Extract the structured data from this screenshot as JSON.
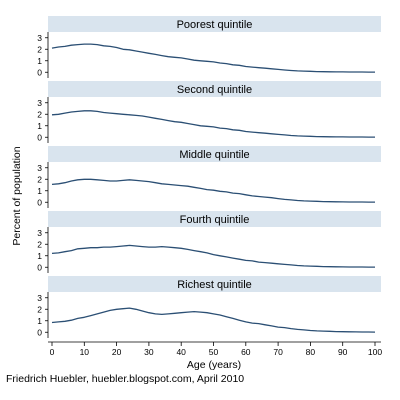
{
  "chart_data": {
    "type": "line",
    "ylabel": "Percent of population",
    "xlabel": "Age (years)",
    "credit": "Friedrich Huebler, huebler.blogspot.com, April 2010",
    "xlim": [
      0,
      100
    ],
    "ylim": [
      -0.5,
      3.5
    ],
    "xticks": [
      0,
      10,
      20,
      30,
      40,
      50,
      60,
      70,
      80,
      90,
      100
    ],
    "yticks": [
      0,
      1,
      2,
      3
    ],
    "line_color": "#2b4f74",
    "panel_header_color": "#d9e4ee",
    "panels": [
      {
        "title": "Poorest quintile",
        "x": [
          0,
          2,
          4,
          6,
          8,
          10,
          12,
          14,
          16,
          18,
          20,
          22,
          24,
          26,
          28,
          30,
          32,
          34,
          36,
          38,
          40,
          42,
          44,
          46,
          48,
          50,
          52,
          54,
          56,
          58,
          60,
          62,
          64,
          66,
          68,
          70,
          72,
          74,
          76,
          78,
          80,
          82,
          84,
          86,
          88,
          90,
          92,
          94,
          96,
          98,
          100
        ],
        "values": [
          2.1,
          2.2,
          2.25,
          2.35,
          2.4,
          2.45,
          2.45,
          2.4,
          2.3,
          2.25,
          2.15,
          2.0,
          1.95,
          1.85,
          1.75,
          1.65,
          1.55,
          1.45,
          1.35,
          1.3,
          1.25,
          1.15,
          1.05,
          1.0,
          0.95,
          0.9,
          0.8,
          0.75,
          0.65,
          0.6,
          0.5,
          0.45,
          0.4,
          0.35,
          0.3,
          0.25,
          0.2,
          0.15,
          0.12,
          0.1,
          0.08,
          0.06,
          0.05,
          0.04,
          0.03,
          0.03,
          0.02,
          0.02,
          0.02,
          0.01,
          0.01
        ]
      },
      {
        "title": "Second quintile",
        "x": [
          0,
          2,
          4,
          6,
          8,
          10,
          12,
          14,
          16,
          18,
          20,
          22,
          24,
          26,
          28,
          30,
          32,
          34,
          36,
          38,
          40,
          42,
          44,
          46,
          48,
          50,
          52,
          54,
          56,
          58,
          60,
          62,
          64,
          66,
          68,
          70,
          72,
          74,
          76,
          78,
          80,
          82,
          84,
          86,
          88,
          90,
          92,
          94,
          96,
          98,
          100
        ],
        "values": [
          1.95,
          2.0,
          2.1,
          2.2,
          2.25,
          2.3,
          2.3,
          2.25,
          2.15,
          2.1,
          2.05,
          2.0,
          1.95,
          1.9,
          1.85,
          1.75,
          1.65,
          1.55,
          1.45,
          1.35,
          1.3,
          1.2,
          1.1,
          1.0,
          0.95,
          0.9,
          0.8,
          0.75,
          0.65,
          0.6,
          0.5,
          0.45,
          0.4,
          0.35,
          0.3,
          0.25,
          0.2,
          0.15,
          0.12,
          0.1,
          0.08,
          0.06,
          0.05,
          0.04,
          0.03,
          0.03,
          0.02,
          0.02,
          0.02,
          0.01,
          0.01
        ]
      },
      {
        "title": "Middle quintile",
        "x": [
          0,
          2,
          4,
          6,
          8,
          10,
          12,
          14,
          16,
          18,
          20,
          22,
          24,
          26,
          28,
          30,
          32,
          34,
          36,
          38,
          40,
          42,
          44,
          46,
          48,
          50,
          52,
          54,
          56,
          58,
          60,
          62,
          64,
          66,
          68,
          70,
          72,
          74,
          76,
          78,
          80,
          82,
          84,
          86,
          88,
          90,
          92,
          94,
          96,
          98,
          100
        ],
        "values": [
          1.55,
          1.6,
          1.7,
          1.85,
          1.95,
          2.0,
          2.0,
          1.95,
          1.9,
          1.85,
          1.85,
          1.9,
          1.95,
          1.9,
          1.85,
          1.8,
          1.7,
          1.6,
          1.55,
          1.5,
          1.45,
          1.4,
          1.3,
          1.2,
          1.1,
          1.05,
          0.95,
          0.9,
          0.8,
          0.75,
          0.65,
          0.55,
          0.5,
          0.45,
          0.4,
          0.32,
          0.25,
          0.2,
          0.15,
          0.12,
          0.1,
          0.08,
          0.06,
          0.05,
          0.04,
          0.03,
          0.02,
          0.02,
          0.02,
          0.01,
          0.01
        ]
      },
      {
        "title": "Fourth quintile",
        "x": [
          0,
          2,
          4,
          6,
          8,
          10,
          12,
          14,
          16,
          18,
          20,
          22,
          24,
          26,
          28,
          30,
          32,
          34,
          36,
          38,
          40,
          42,
          44,
          46,
          48,
          50,
          52,
          54,
          56,
          58,
          60,
          62,
          64,
          66,
          68,
          70,
          72,
          74,
          76,
          78,
          80,
          82,
          84,
          86,
          88,
          90,
          92,
          94,
          96,
          98,
          100
        ],
        "values": [
          1.2,
          1.25,
          1.35,
          1.45,
          1.6,
          1.65,
          1.7,
          1.7,
          1.75,
          1.75,
          1.8,
          1.85,
          1.9,
          1.85,
          1.8,
          1.75,
          1.75,
          1.8,
          1.75,
          1.7,
          1.65,
          1.55,
          1.45,
          1.35,
          1.25,
          1.1,
          1.0,
          0.9,
          0.8,
          0.7,
          0.6,
          0.55,
          0.45,
          0.4,
          0.35,
          0.3,
          0.25,
          0.2,
          0.15,
          0.12,
          0.1,
          0.08,
          0.06,
          0.05,
          0.04,
          0.03,
          0.02,
          0.02,
          0.02,
          0.01,
          0.01
        ]
      },
      {
        "title": "Richest quintile",
        "x": [
          0,
          2,
          4,
          6,
          8,
          10,
          12,
          14,
          16,
          18,
          20,
          22,
          24,
          26,
          28,
          30,
          32,
          34,
          36,
          38,
          40,
          42,
          44,
          46,
          48,
          50,
          52,
          54,
          56,
          58,
          60,
          62,
          64,
          66,
          68,
          70,
          72,
          74,
          76,
          78,
          80,
          82,
          84,
          86,
          88,
          90,
          92,
          94,
          96,
          98,
          100
        ],
        "values": [
          0.85,
          0.9,
          0.95,
          1.05,
          1.2,
          1.3,
          1.45,
          1.6,
          1.75,
          1.9,
          2.0,
          2.05,
          2.1,
          2.0,
          1.85,
          1.7,
          1.6,
          1.55,
          1.6,
          1.65,
          1.7,
          1.75,
          1.8,
          1.75,
          1.7,
          1.6,
          1.5,
          1.35,
          1.2,
          1.05,
          0.9,
          0.8,
          0.75,
          0.65,
          0.55,
          0.45,
          0.4,
          0.32,
          0.25,
          0.2,
          0.15,
          0.12,
          0.1,
          0.08,
          0.06,
          0.05,
          0.04,
          0.03,
          0.02,
          0.02,
          0.01
        ]
      }
    ]
  }
}
